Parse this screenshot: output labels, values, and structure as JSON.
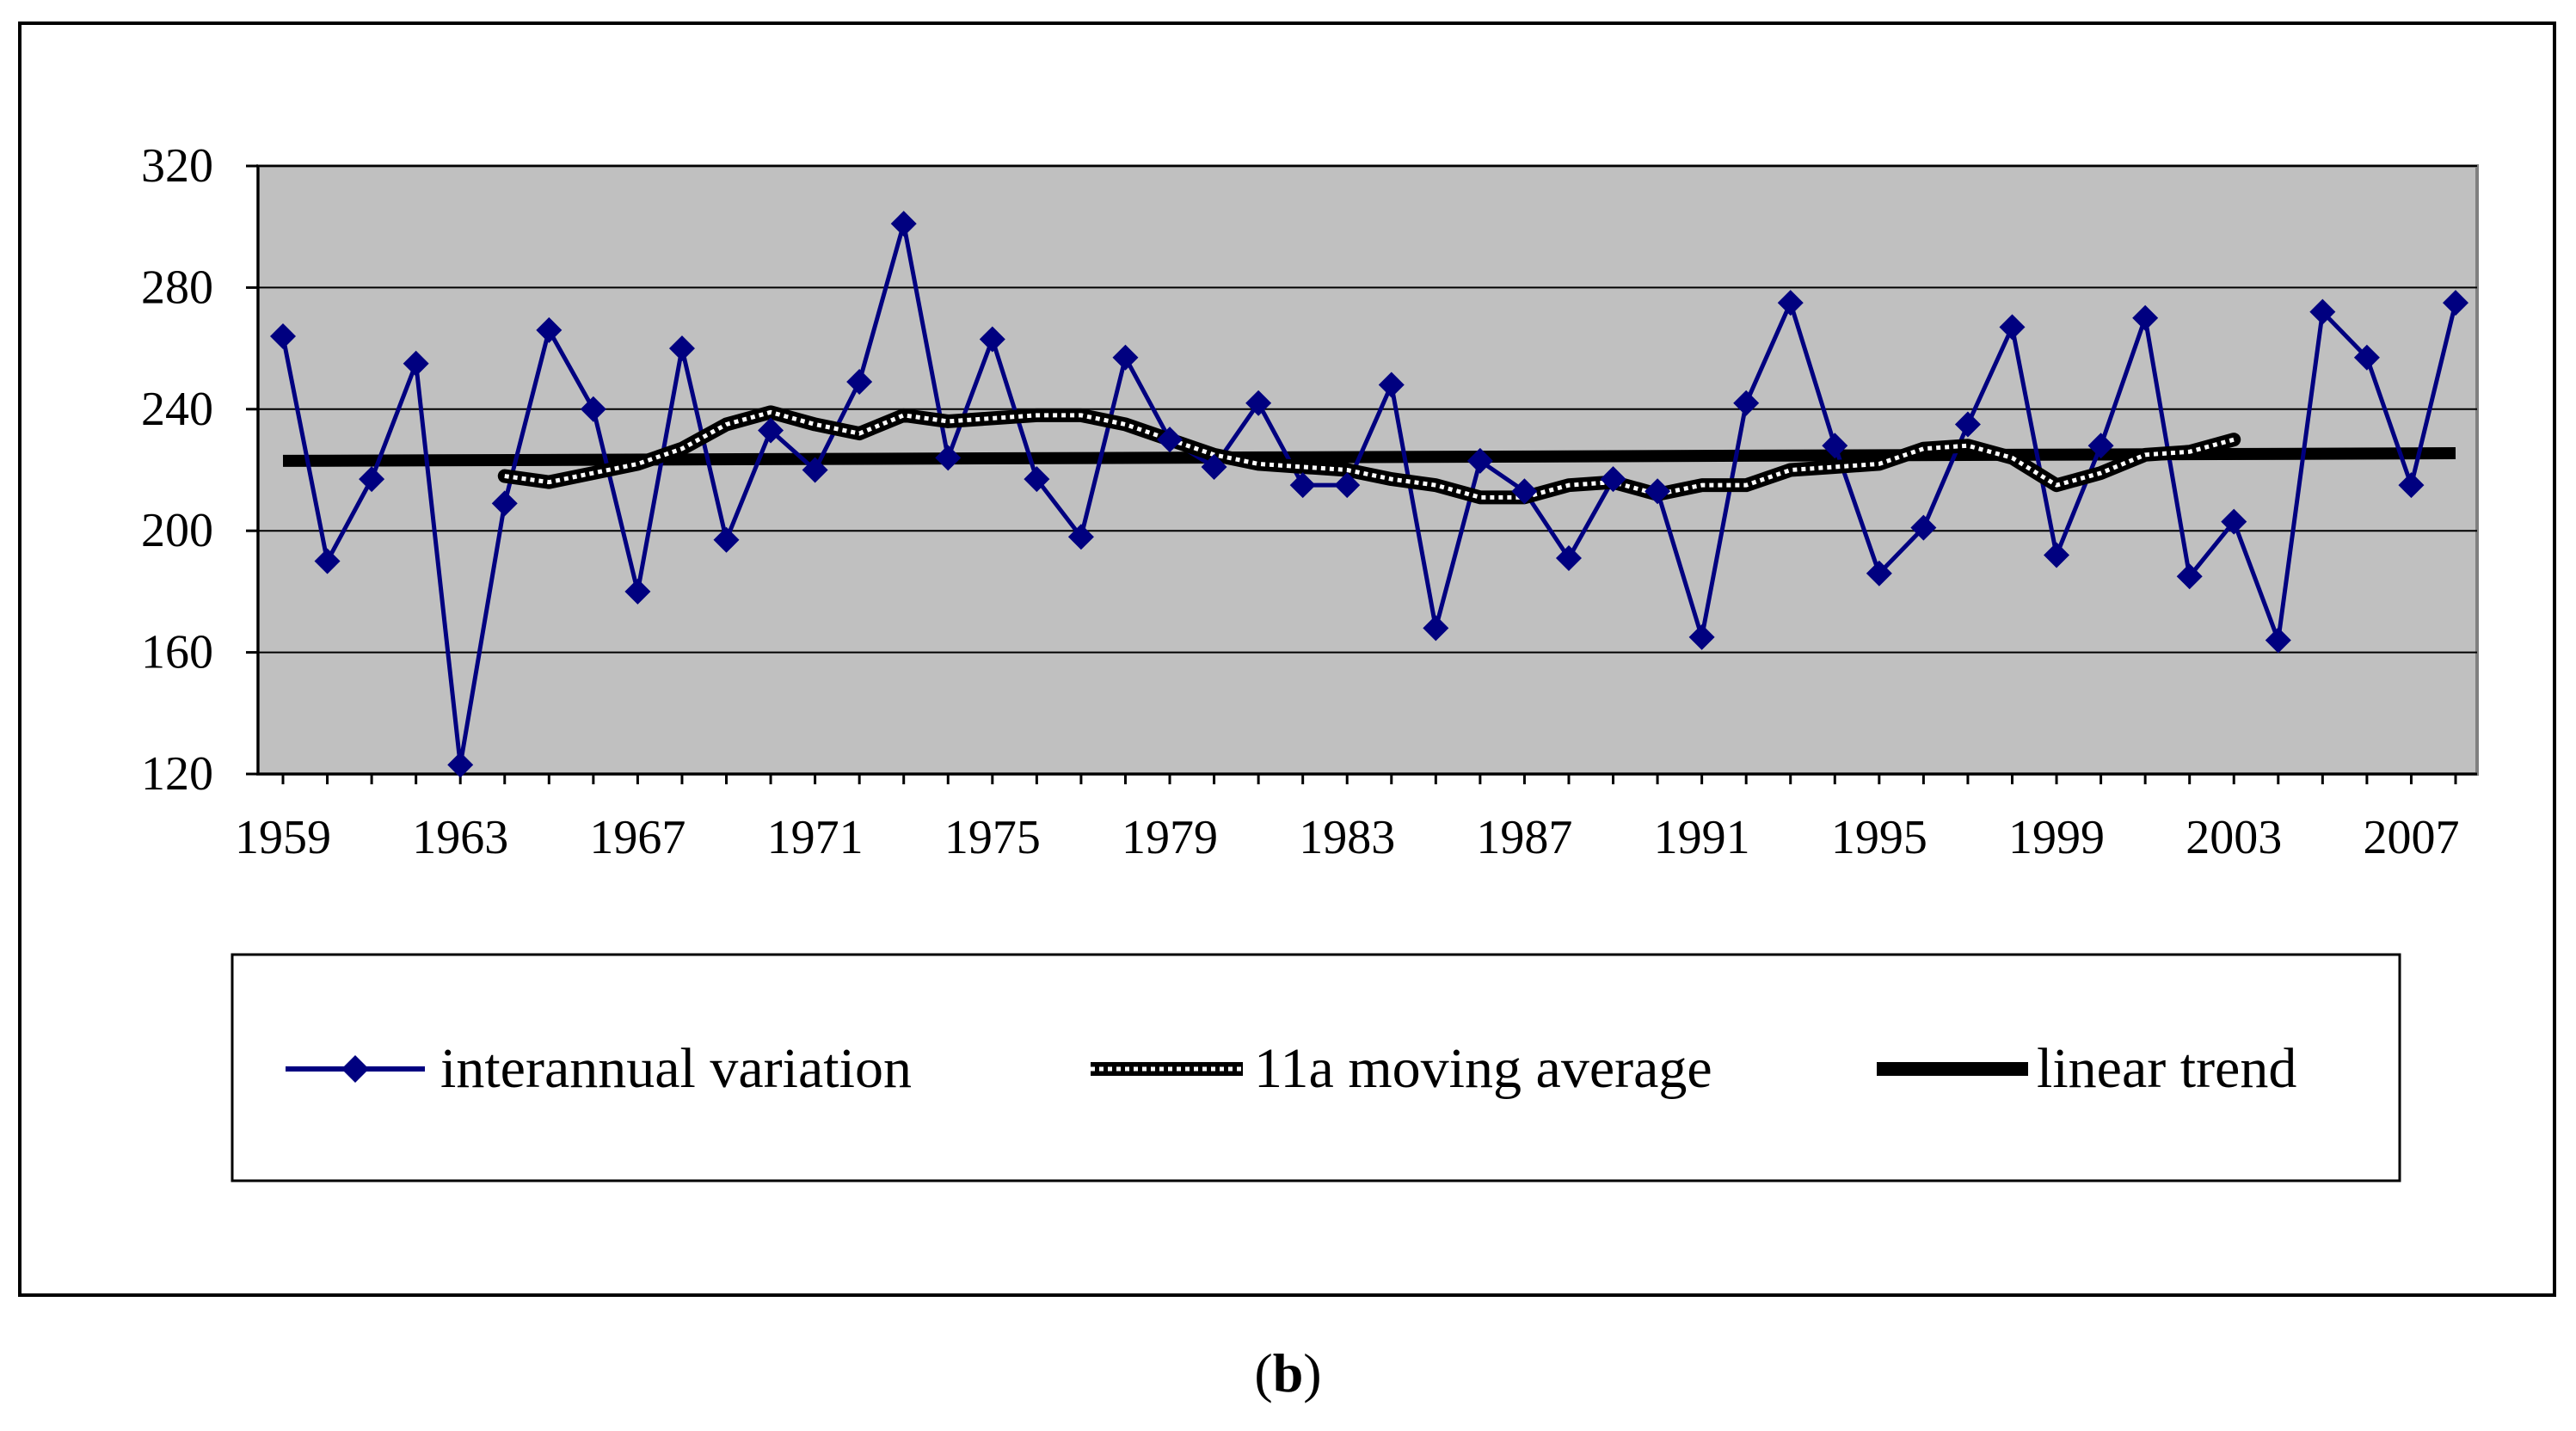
{
  "chart_data": {
    "type": "line",
    "title": "",
    "xlabel": "",
    "ylabel": "",
    "ylim": [
      120,
      320
    ],
    "yticks": [
      120,
      160,
      200,
      240,
      280,
      320
    ],
    "xlim": [
      1959,
      2008
    ],
    "xticks": [
      1959,
      1963,
      1967,
      1971,
      1975,
      1979,
      1983,
      1987,
      1991,
      1995,
      1999,
      2003,
      2007
    ],
    "grid": "horizontal",
    "legend_position": "bottom",
    "series": [
      {
        "name": "interannual variation",
        "color": "#000080",
        "marker": "diamond",
        "x": [
          1959,
          1960,
          1961,
          1962,
          1963,
          1964,
          1965,
          1966,
          1967,
          1968,
          1969,
          1970,
          1971,
          1972,
          1973,
          1974,
          1975,
          1976,
          1977,
          1978,
          1979,
          1980,
          1981,
          1982,
          1983,
          1984,
          1985,
          1986,
          1987,
          1988,
          1989,
          1990,
          1991,
          1992,
          1993,
          1994,
          1995,
          1996,
          1997,
          1998,
          1999,
          2000,
          2001,
          2002,
          2003,
          2004,
          2005,
          2006,
          2007,
          2008
        ],
        "values": [
          264,
          190,
          217,
          255,
          123,
          209,
          266,
          240,
          180,
          260,
          197,
          233,
          220,
          249,
          301,
          224,
          263,
          217,
          198,
          257,
          230,
          221,
          242,
          215,
          215,
          248,
          168,
          223,
          213,
          191,
          217,
          213,
          165,
          242,
          275,
          228,
          186,
          201,
          235,
          267,
          192,
          228,
          270,
          185,
          203,
          164,
          272,
          257,
          215,
          275
        ]
      },
      {
        "name": "11a moving average",
        "color": "#000000",
        "style": "dotted-thick",
        "x": [
          1964,
          1965,
          1966,
          1967,
          1968,
          1969,
          1970,
          1971,
          1972,
          1973,
          1974,
          1975,
          1976,
          1977,
          1978,
          1979,
          1980,
          1981,
          1982,
          1983,
          1984,
          1985,
          1986,
          1987,
          1988,
          1989,
          1990,
          1991,
          1992,
          1993,
          1994,
          1995,
          1996,
          1997,
          1998,
          1999,
          2000,
          2001,
          2002,
          2003
        ],
        "values": [
          218,
          216,
          219,
          222,
          227,
          235,
          239,
          235,
          232,
          238,
          236,
          237,
          238,
          238,
          235,
          230,
          225,
          222,
          221,
          220,
          217,
          215,
          211,
          211,
          215,
          216,
          212,
          215,
          215,
          220,
          221,
          222,
          227,
          228,
          224,
          215,
          219,
          225,
          226,
          230
        ]
      },
      {
        "name": "linear trend",
        "color": "#000000",
        "style": "solid-thick",
        "x": [
          1959,
          2008
        ],
        "values": [
          223,
          225.5
        ]
      }
    ]
  },
  "caption": {
    "open": "(",
    "label": "b",
    "close": ")"
  }
}
